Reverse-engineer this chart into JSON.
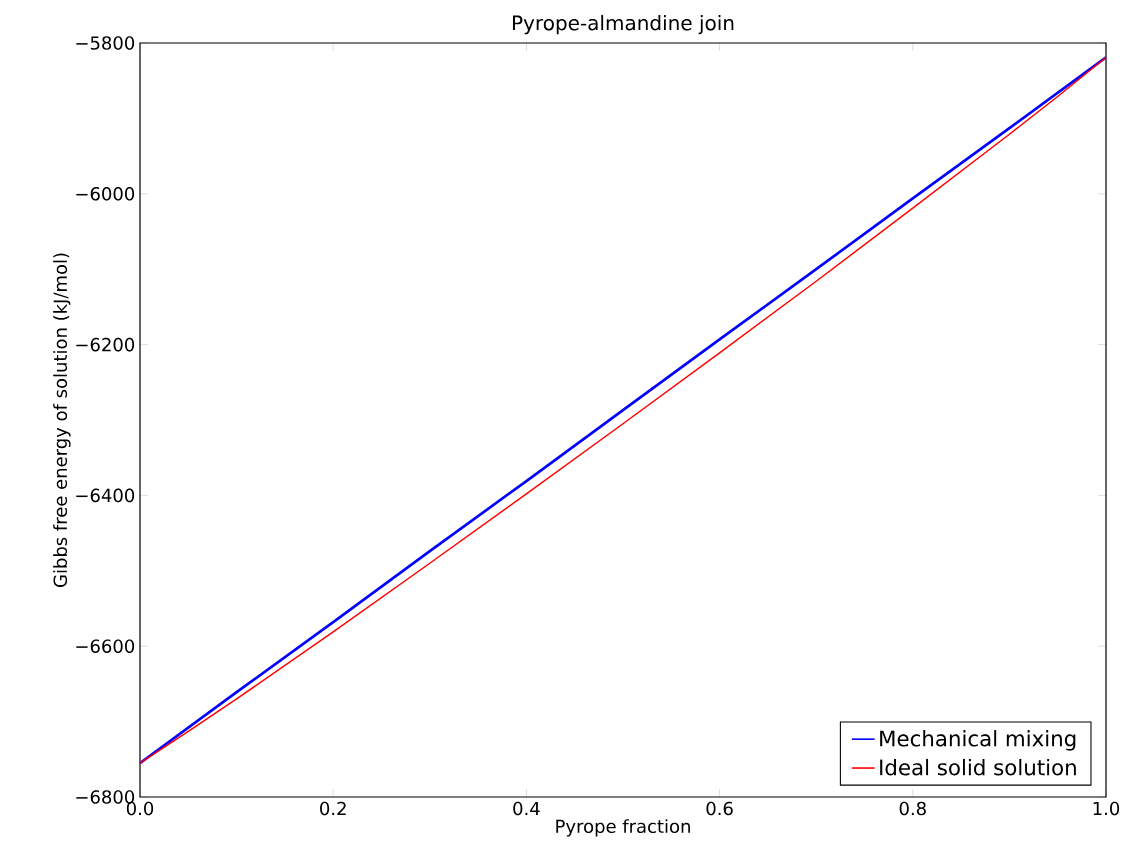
{
  "chart_data": {
    "type": "line",
    "title": "Pyrope-almandine join",
    "xlabel": "Pyrope fraction",
    "ylabel": "Gibbs free energy of solution (kJ/mol)",
    "x": [
      0,
      0.05,
      0.1,
      0.2,
      0.3,
      0.4,
      0.5,
      0.6,
      0.7,
      0.8,
      0.9,
      0.95,
      1
    ],
    "series": [
      {
        "name": "Mechanical mixing",
        "color": "#0000ff",
        "values": [
          -6755,
          -6708,
          -6661,
          -6568,
          -6474,
          -6381,
          -6287,
          -6193,
          -6100,
          -6006,
          -5913,
          -5866,
          -5819
        ]
      },
      {
        "name": "Ideal solid solution",
        "color": "#ff0000",
        "values": [
          -6755,
          -6713,
          -6670,
          -6581,
          -6490,
          -6398,
          -6305,
          -6211,
          -6116,
          -6019,
          -5921,
          -5871,
          -5819
        ]
      }
    ],
    "xlim": [
      0,
      1
    ],
    "ylim": [
      -6800,
      -5800
    ],
    "xticks": [
      {
        "value": 0,
        "label": "0.0"
      },
      {
        "value": 0.2,
        "label": "0.2"
      },
      {
        "value": 0.4,
        "label": "0.4"
      },
      {
        "value": 0.6,
        "label": "0.6"
      },
      {
        "value": 0.8,
        "label": "0.8"
      },
      {
        "value": 1,
        "label": "1.0"
      }
    ],
    "yticks": [
      {
        "value": -6800,
        "label": "−6800"
      },
      {
        "value": -6600,
        "label": "−6600"
      },
      {
        "value": -6400,
        "label": "−6400"
      },
      {
        "value": -6200,
        "label": "−6200"
      },
      {
        "value": -6000,
        "label": "−6000"
      },
      {
        "value": -5800,
        "label": "−5800"
      }
    ],
    "legend": "bottom right",
    "grid": false,
    "marker": "none",
    "line_style": "solid"
  }
}
